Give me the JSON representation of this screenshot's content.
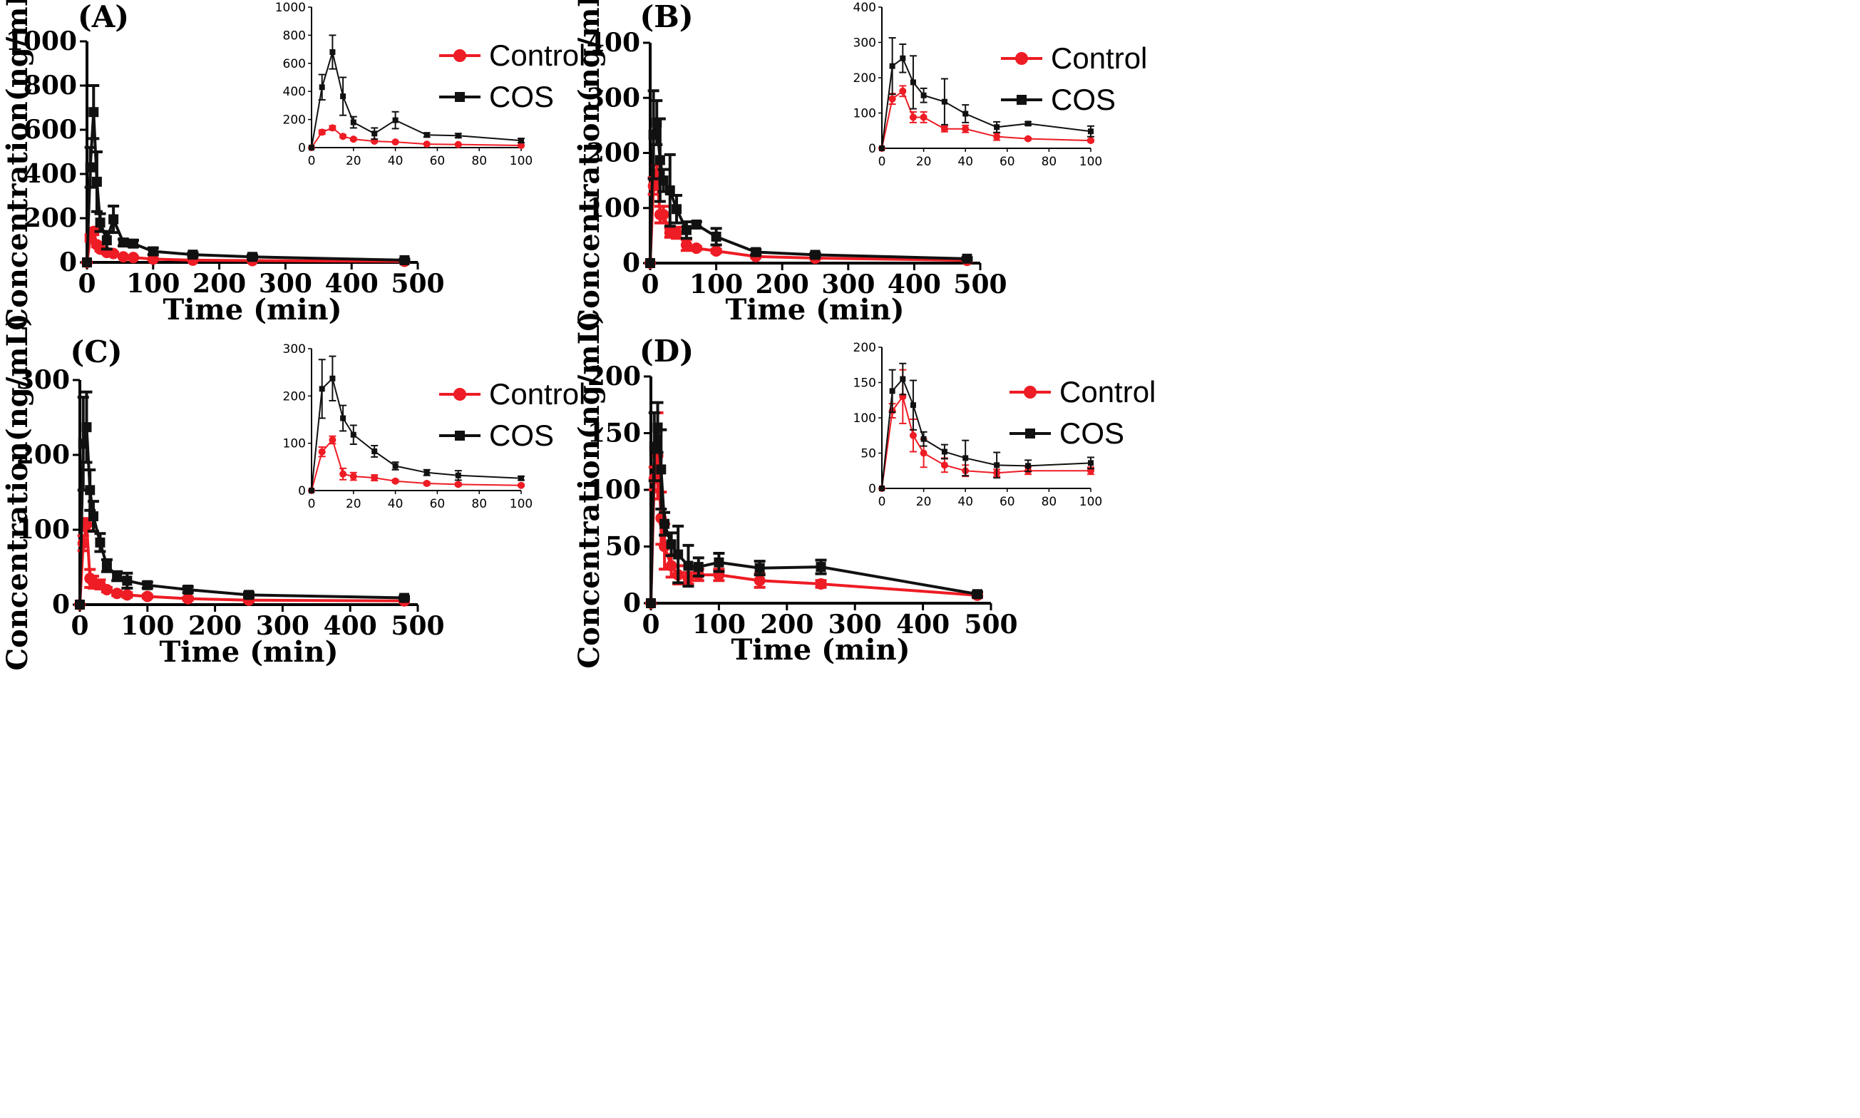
{
  "colors": {
    "control": "#ee1c24",
    "cos": "#111111"
  },
  "chart_data": [
    {
      "type": "line",
      "panel": "(A)",
      "xlabel": "Time (min)",
      "ylabel": "Concentration(ng/mL)",
      "xlim": [
        0,
        500
      ],
      "ylim": [
        0,
        1000
      ],
      "xticks": [
        "0",
        "100",
        "200",
        "300",
        "400",
        "500"
      ],
      "yticks": [
        "0",
        "200",
        "400",
        "600",
        "800",
        "1000"
      ],
      "legend": [
        "Control",
        "COS"
      ],
      "series": [
        {
          "name": "Control",
          "x": [
            0,
            5,
            10,
            15,
            20,
            30,
            40,
            55,
            70,
            100,
            160,
            250,
            480
          ],
          "y": [
            0,
            110,
            140,
            80,
            60,
            45,
            40,
            25,
            22,
            15,
            10,
            8,
            5
          ],
          "err": [
            0,
            15,
            15,
            10,
            8,
            5,
            5,
            3,
            3,
            2,
            2,
            2,
            2
          ]
        },
        {
          "name": "COS",
          "x": [
            0,
            5,
            10,
            15,
            20,
            30,
            40,
            55,
            70,
            100,
            160,
            250,
            480
          ],
          "y": [
            0,
            430,
            680,
            365,
            180,
            100,
            195,
            90,
            85,
            50,
            35,
            25,
            10
          ],
          "err": [
            0,
            90,
            120,
            135,
            40,
            40,
            60,
            15,
            15,
            15,
            8,
            8,
            5
          ]
        }
      ],
      "inset": {
        "xlim": [
          0,
          100
        ],
        "ylim": [
          0,
          1000
        ],
        "xticks": [
          "0",
          "20",
          "40",
          "60",
          "80",
          "100"
        ],
        "yticks": [
          "0",
          "200",
          "400",
          "600",
          "800",
          "1000"
        ]
      }
    },
    {
      "type": "line",
      "panel": "(B)",
      "xlabel": "Time (min)",
      "ylabel": "Concentration(ng/mL)",
      "xlim": [
        0,
        500
      ],
      "ylim": [
        0,
        400
      ],
      "xticks": [
        "0",
        "100",
        "200",
        "300",
        "400",
        "500"
      ],
      "yticks": [
        "0",
        "100",
        "200",
        "300",
        "400"
      ],
      "legend": [
        "Control",
        "COS"
      ],
      "series": [
        {
          "name": "Control",
          "x": [
            0,
            5,
            10,
            15,
            20,
            30,
            40,
            55,
            70,
            100,
            160,
            250,
            480
          ],
          "y": [
            0,
            140,
            162,
            88,
            88,
            55,
            55,
            33,
            27,
            22,
            12,
            9,
            5
          ],
          "err": [
            0,
            15,
            15,
            15,
            15,
            8,
            10,
            10,
            3,
            3,
            2,
            2,
            2
          ]
        },
        {
          "name": "COS",
          "x": [
            0,
            5,
            10,
            15,
            20,
            30,
            40,
            55,
            70,
            100,
            160,
            250,
            480
          ],
          "y": [
            0,
            233,
            255,
            187,
            150,
            132,
            98,
            60,
            70,
            48,
            20,
            15,
            8
          ],
          "err": [
            0,
            80,
            40,
            75,
            20,
            65,
            25,
            15,
            5,
            15,
            5,
            3,
            2
          ]
        }
      ],
      "inset": {
        "xlim": [
          0,
          100
        ],
        "ylim": [
          0,
          400
        ],
        "xticks": [
          "0",
          "20",
          "40",
          "60",
          "80",
          "100"
        ],
        "yticks": [
          "0",
          "100",
          "200",
          "300",
          "400"
        ]
      }
    },
    {
      "type": "line",
      "panel": "(C)",
      "xlabel": "Time (min)",
      "ylabel": "Concentration(ng/mL)",
      "xlim": [
        0,
        500
      ],
      "ylim": [
        0,
        300
      ],
      "xticks": [
        "0",
        "100",
        "200",
        "300",
        "400",
        "500"
      ],
      "yticks": [
        "0",
        "100",
        "200",
        "300"
      ],
      "legend": [
        "Control",
        "COS"
      ],
      "series": [
        {
          "name": "Control",
          "x": [
            0,
            5,
            10,
            15,
            20,
            30,
            40,
            55,
            70,
            100,
            160,
            250,
            480
          ],
          "y": [
            0,
            82,
            107,
            35,
            30,
            27,
            20,
            15,
            13,
            11,
            8,
            6,
            5
          ],
          "err": [
            0,
            10,
            8,
            12,
            8,
            6,
            3,
            3,
            3,
            2,
            2,
            2,
            2
          ]
        },
        {
          "name": "COS",
          "x": [
            0,
            5,
            10,
            15,
            20,
            30,
            40,
            55,
            70,
            100,
            160,
            250,
            480
          ],
          "y": [
            0,
            215,
            237,
            153,
            118,
            83,
            52,
            38,
            32,
            26,
            20,
            13,
            9
          ],
          "err": [
            0,
            62,
            47,
            27,
            20,
            12,
            8,
            6,
            10,
            4,
            4,
            3,
            2
          ]
        }
      ],
      "inset": {
        "xlim": [
          0,
          100
        ],
        "ylim": [
          0,
          300
        ],
        "xticks": [
          "0",
          "20",
          "40",
          "60",
          "80",
          "100"
        ],
        "yticks": [
          "0",
          "100",
          "200",
          "300"
        ]
      }
    },
    {
      "type": "line",
      "panel": "(D)",
      "xlabel": "Time (min)",
      "ylabel": "Concentration(ng/mL)",
      "xlim": [
        0,
        500
      ],
      "ylim": [
        0,
        200
      ],
      "xticks": [
        "0",
        "100",
        "200",
        "300",
        "400",
        "500"
      ],
      "yticks": [
        "0",
        "50",
        "100",
        "150",
        "200"
      ],
      "legend": [
        "Control",
        "COS"
      ],
      "series": [
        {
          "name": "Control",
          "x": [
            0,
            5,
            10,
            15,
            20,
            30,
            40,
            55,
            70,
            100,
            160,
            250,
            480
          ],
          "y": [
            0,
            110,
            130,
            75,
            50,
            33,
            25,
            22,
            25,
            25,
            20,
            17,
            7
          ],
          "err": [
            0,
            10,
            38,
            23,
            20,
            10,
            8,
            5,
            5,
            5,
            6,
            3,
            2
          ]
        },
        {
          "name": "COS",
          "x": [
            0,
            5,
            10,
            15,
            20,
            30,
            40,
            55,
            70,
            100,
            160,
            250,
            480
          ],
          "y": [
            0,
            138,
            155,
            118,
            70,
            52,
            43,
            33,
            32,
            36,
            31,
            32,
            8
          ],
          "err": [
            0,
            30,
            22,
            35,
            10,
            10,
            25,
            18,
            8,
            8,
            6,
            6,
            2
          ]
        }
      ],
      "inset": {
        "xlim": [
          0,
          100
        ],
        "ylim": [
          0,
          200
        ],
        "xticks": [
          "0",
          "20",
          "40",
          "60",
          "80",
          "100"
        ],
        "yticks": [
          "0",
          "50",
          "100",
          "150",
          "200"
        ]
      }
    }
  ]
}
